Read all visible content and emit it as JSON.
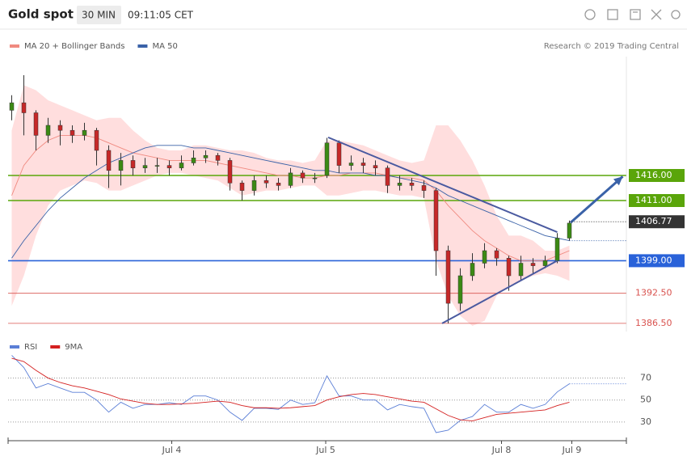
{
  "header": {
    "title": "Gold spot",
    "interval": "30 MIN",
    "time": "09:11:05 CET"
  },
  "credit": "Research © 2019 Trading Central",
  "chart_data": [
    {
      "type": "candlestick",
      "x": [
        0,
        1,
        2,
        3,
        4,
        5,
        6,
        7,
        8,
        9,
        10,
        11,
        12,
        13,
        14,
        15,
        16,
        17,
        18,
        19,
        20,
        21,
        22,
        23,
        24,
        25,
        26,
        27,
        28,
        29,
        30,
        31,
        32,
        33,
        34,
        35,
        36,
        37,
        38,
        39,
        40,
        41,
        42,
        43,
        44,
        45,
        46
      ],
      "open": [
        1429,
        1430.5,
        1428.5,
        1424,
        1426,
        1425,
        1424,
        1425,
        1421,
        1417,
        1419,
        1417.5,
        1418,
        1418,
        1417.5,
        1418.5,
        1419.5,
        1420,
        1419,
        1414.5,
        1413,
        1415,
        1414.5,
        1414,
        1416.5,
        1415.5,
        1416,
        1422.5,
        1418,
        1418.5,
        1418,
        1417.5,
        1414,
        1414.5,
        1414,
        1413,
        1401,
        1390.5,
        1396,
        1398.5,
        1401,
        1399.5,
        1396,
        1398.5,
        1398,
        1399,
        1403.5
      ],
      "high": [
        1432,
        1436,
        1429,
        1427.5,
        1427,
        1426,
        1426.5,
        1425.5,
        1422,
        1420.5,
        1420,
        1419.5,
        1419.5,
        1419,
        1420,
        1421,
        1421,
        1420.5,
        1419.5,
        1415,
        1416,
        1416,
        1415.5,
        1417.5,
        1417,
        1416.5,
        1423.5,
        1423,
        1420,
        1419.5,
        1419,
        1418,
        1416,
        1415.5,
        1415,
        1413.5,
        1402,
        1397.5,
        1400.5,
        1402.5,
        1401.5,
        1400,
        1400,
        1399.5,
        1400,
        1404.5,
        1407
      ],
      "low": [
        1427,
        1424,
        1421,
        1422.5,
        1422,
        1422.5,
        1423,
        1418,
        1413.5,
        1414,
        1416,
        1416.5,
        1416.5,
        1416,
        1417,
        1418,
        1418.5,
        1418,
        1413,
        1411,
        1412,
        1413.5,
        1413,
        1413.5,
        1414.5,
        1414.5,
        1415.5,
        1416.5,
        1417,
        1416.5,
        1416,
        1412.5,
        1413,
        1413,
        1411.5,
        1396,
        1386.5,
        1389,
        1395,
        1397.5,
        1398,
        1393,
        1395,
        1396.5,
        1397.5,
        1398.5,
        1403
      ],
      "close": [
        1430.5,
        1428.5,
        1424,
        1426,
        1425,
        1424,
        1425,
        1421,
        1417,
        1419,
        1417.5,
        1418,
        1418,
        1417.5,
        1418.5,
        1419.5,
        1420,
        1419,
        1414.5,
        1413,
        1415,
        1414.5,
        1414,
        1416.5,
        1415.5,
        1415.5,
        1422.5,
        1418,
        1418.5,
        1418,
        1417.5,
        1414,
        1414.5,
        1414,
        1413,
        1401,
        1390.5,
        1396,
        1398.5,
        1401,
        1399.5,
        1396,
        1398.5,
        1398,
        1399,
        1403.5,
        1406.5
      ],
      "up_color": "#3c8a14",
      "down_color": "#c62828",
      "series": [
        {
          "name": "MA 20 + Bollinger Bands",
          "color": "#f08a80",
          "band_color": "#ffdede",
          "values": [
            1412,
            1418,
            1421,
            1423,
            1424,
            1424,
            1424,
            1423.5,
            1422.5,
            1421.5,
            1420.5,
            1420,
            1419.5,
            1419,
            1419,
            1419,
            1419,
            1418.5,
            1418,
            1417.5,
            1417,
            1416.5,
            1416,
            1416,
            1415.5,
            1415.5,
            1416,
            1416,
            1416.5,
            1416.5,
            1416.5,
            1416,
            1415.5,
            1415.5,
            1415,
            1413,
            1410,
            1407.5,
            1405,
            1403,
            1401.5,
            1400,
            1399,
            1399,
            1399,
            1400,
            1401
          ],
          "upper": [
            1425,
            1434,
            1433,
            1431,
            1430,
            1429,
            1428,
            1427,
            1427.5,
            1427.5,
            1425,
            1423,
            1421.5,
            1421,
            1421,
            1422,
            1422,
            1421.5,
            1421,
            1421,
            1420.5,
            1419.5,
            1419,
            1419,
            1418.5,
            1419,
            1423,
            1423,
            1422.5,
            1422,
            1421,
            1420,
            1419,
            1418.5,
            1419,
            1426,
            1426,
            1423,
            1419,
            1414,
            1408,
            1404,
            1404,
            1403,
            1401,
            1401,
            1402
          ],
          "lower": [
            1390,
            1396,
            1404,
            1410,
            1413,
            1414,
            1415,
            1414.5,
            1413,
            1413,
            1414,
            1415,
            1416,
            1416.5,
            1416.5,
            1416,
            1415.5,
            1415,
            1413.5,
            1412,
            1412.5,
            1413,
            1413,
            1413.5,
            1414,
            1414,
            1412,
            1412,
            1412.5,
            1413,
            1413,
            1412.5,
            1412,
            1412,
            1411.5,
            1399,
            1392,
            1388,
            1386,
            1387,
            1392,
            1394,
            1395,
            1396,
            1396.5,
            1396,
            1395
          ]
        },
        {
          "name": "MA 50",
          "color": "#3a62a8",
          "values": [
            1399.5,
            1403,
            1406,
            1409,
            1411.5,
            1413.5,
            1415.5,
            1417,
            1418.5,
            1419.5,
            1420.5,
            1421.5,
            1422,
            1422,
            1422,
            1421.5,
            1421.5,
            1421,
            1420.5,
            1420,
            1419.5,
            1419,
            1418.5,
            1418,
            1417.5,
            1417,
            1417,
            1416.5,
            1416.5,
            1416.5,
            1416,
            1416,
            1415.5,
            1415,
            1414.5,
            1413.5,
            1412,
            1411,
            1410,
            1409,
            1408,
            1407,
            1406,
            1405,
            1404,
            1403.5,
            1403
          ]
        }
      ],
      "levels": [
        {
          "value": 1416,
          "label": "1416.00",
          "color": "#5aa50a",
          "boxed": true
        },
        {
          "value": 1411,
          "label": "1411.00",
          "color": "#5aa50a",
          "boxed": true
        },
        {
          "value": 1399,
          "label": "1399.00",
          "color": "#2962d9",
          "boxed": true
        },
        {
          "value": 1392.5,
          "label": "1392.50",
          "color": "#d9534f",
          "boxed": false
        },
        {
          "value": 1386.5,
          "label": "1386.50",
          "color": "#d9534f",
          "boxed": false
        }
      ],
      "last_price": {
        "value": 1406.77,
        "label": "1406.77",
        "color": "#333333"
      },
      "trendlines": [
        {
          "x": [
            26.1,
            45.0
          ],
          "values": [
            1423.6,
            1404.7
          ],
          "color": "#4a5aa0"
        },
        {
          "x": [
            35.5,
            45.0
          ],
          "values": [
            1386.5,
            1399
          ],
          "color": "#4a5aa0"
        }
      ],
      "projection": {
        "x": [
          46.1,
          50.4
        ],
        "values": [
          1406.6,
          1415.8
        ],
        "color": "#3a62a8"
      },
      "xlim": [
        -0.3,
        50.7
      ],
      "ylim": [
        1385,
        1438
      ]
    },
    {
      "type": "line",
      "x": [
        0,
        1,
        2,
        3,
        4,
        5,
        6,
        7,
        8,
        9,
        10,
        11,
        12,
        13,
        14,
        15,
        16,
        17,
        18,
        19,
        20,
        21,
        22,
        23,
        24,
        25,
        26,
        27,
        28,
        29,
        30,
        31,
        32,
        33,
        34,
        35,
        36,
        37,
        38,
        39,
        40,
        41,
        42,
        43,
        44,
        45,
        46
      ],
      "series": [
        {
          "name": "RSI",
          "color": "#5b7fd6",
          "values": [
            90.7,
            79.6,
            61,
            65,
            61,
            57,
            57,
            50,
            39,
            48,
            42.5,
            46,
            46,
            47.5,
            46,
            53.7,
            53.7,
            50,
            39,
            31.5,
            42.5,
            42.5,
            41.5,
            50,
            46,
            47.5,
            72,
            53.7,
            53.7,
            50,
            50,
            41,
            46,
            44,
            42.5,
            20.4,
            22.6,
            31.5,
            35,
            46,
            39,
            39,
            46,
            42.5,
            46,
            57.4,
            64.8
          ]
        },
        {
          "name": "9MA",
          "color": "#d42020",
          "values": [
            88,
            85,
            77,
            70,
            66,
            63,
            61,
            58,
            55,
            51,
            49,
            47,
            46,
            46,
            46.5,
            47,
            48,
            49,
            48,
            45,
            43,
            43,
            42.5,
            43,
            44,
            45,
            50,
            53,
            55,
            56,
            55,
            53,
            51,
            49,
            48,
            42,
            36,
            32,
            31,
            34,
            37,
            38,
            39,
            40,
            41,
            45,
            48
          ]
        }
      ],
      "xlim": [
        -0.3,
        50.7
      ],
      "ylim": [
        13,
        105
      ],
      "yticks": [
        30,
        50,
        70
      ],
      "xticks": [
        {
          "value": 13.2,
          "label": "Jul 4"
        },
        {
          "value": 25.9,
          "label": "Jul 5"
        },
        {
          "value": 40.4,
          "label": "Jul 8"
        },
        {
          "value": 46.2,
          "label": "Jul 9"
        }
      ]
    }
  ]
}
